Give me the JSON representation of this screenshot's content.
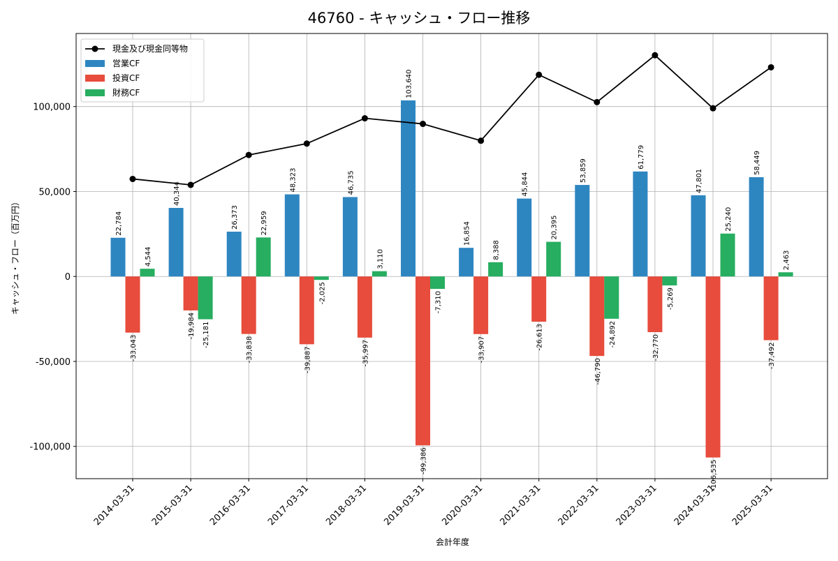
{
  "chart_data": {
    "type": "bar",
    "title": "46760 - キャッシュ・フロー推移",
    "xlabel": "会計年度",
    "ylabel": "キャッシュ・フロー（百万円）",
    "ylim": [
      -119000,
      143000
    ],
    "yticks": [
      -100000,
      -50000,
      0,
      50000,
      100000
    ],
    "ytick_labels": [
      "-100,000",
      "-50,000",
      "0",
      "50,000",
      "100,000"
    ],
    "grid": true,
    "legend_position": "top-left",
    "categories": [
      "2014-03-31",
      "2015-03-31",
      "2016-03-31",
      "2017-03-31",
      "2018-03-31",
      "2019-03-31",
      "2020-03-31",
      "2021-03-31",
      "2022-03-31",
      "2023-03-31",
      "2024-03-31",
      "2025-03-31"
    ],
    "series": [
      {
        "name": "営業CF",
        "kind": "bar",
        "color": "#2e86c1",
        "values": [
          22784,
          40344,
          26373,
          48323,
          46735,
          103640,
          16854,
          45844,
          53859,
          61779,
          47801,
          58449
        ],
        "labels": [
          "22,784",
          "40,344",
          "26,373",
          "48,323",
          "46,735",
          "103,640",
          "16,854",
          "45,844",
          "53,859",
          "61,779",
          "47,801",
          "58,449"
        ]
      },
      {
        "name": "投資CF",
        "kind": "bar",
        "color": "#e74c3c",
        "values": [
          -33043,
          -19984,
          -33838,
          -39887,
          -35997,
          -99386,
          -33907,
          -26613,
          -46790,
          -32770,
          -106535,
          -37492
        ],
        "labels": [
          "-33,043",
          "-19,984",
          "-33,838",
          "-39,887",
          "-35,997",
          "-99,386",
          "-33,907",
          "-26,613",
          "-46,790",
          "-32,770",
          "-106,535",
          "-37,492"
        ]
      },
      {
        "name": "財務CF",
        "kind": "bar",
        "color": "#27ae60",
        "values": [
          4544,
          -25181,
          22959,
          -2025,
          3110,
          -7310,
          8388,
          20395,
          -24892,
          -5269,
          25240,
          2463
        ],
        "labels": [
          "4,544",
          "-25,181",
          "22,959",
          "-2,025",
          "3,110",
          "-7,310",
          "8,388",
          "20,395",
          "-24,892",
          "-5,269",
          "25,240",
          "2,463"
        ]
      }
    ],
    "line_series": {
      "name": "現金及び現金同等物",
      "kind": "line",
      "color": "#000000",
      "values": [
        57400,
        53900,
        71500,
        78200,
        93100,
        89800,
        79900,
        118700,
        102600,
        130200,
        99000,
        123100
      ]
    }
  }
}
